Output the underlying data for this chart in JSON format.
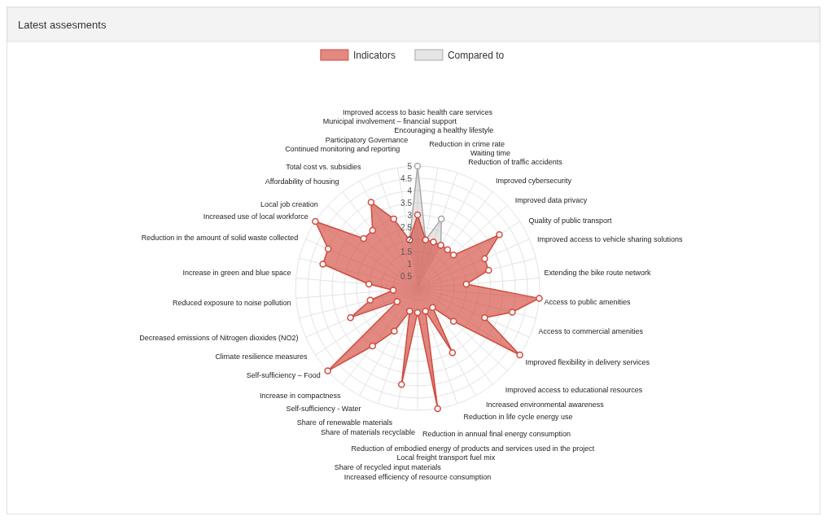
{
  "chart_data": {
    "type": "radar",
    "title": "Latest assesments",
    "categories": [
      "Improved access to basic health care services",
      "Encouraging a healthy lifestyle",
      "Reduction in crime rate",
      "Waiting time",
      "Reduction of traffic accidents",
      "Improved cybersecurity",
      "Improved data privacy",
      "Quality of public transport",
      "Improved access to vehicle sharing solutions",
      "Extending the bike route network",
      "Access to public amenities",
      "Access to commercial amenities",
      "Improved flexibility in delivery services",
      "Improved access to educational resources",
      "Increased environmental awareness",
      "Reduction in life cycle energy use",
      "Reduction in annual final energy consumption",
      "Reduction of embodied energy of products and services used in the project",
      "Local freight transport fuel mix",
      "Increased efficiency of resource consumption",
      "Share of recycled input materials",
      "Share of materials recyclable",
      "Share of renewable materials",
      "Self-sufficiency - Water",
      "Increase in compactness",
      "Self-sufficiency – Food",
      "Climate resilience measures",
      "Decreased emissions of Nitrogen dioxides (NO2)",
      "Reduced exposure to noise pollution",
      "Increase in green and blue space",
      "Reduction in the amount of solid waste collected",
      "Increased use of local workforce",
      "Local job creation",
      "Affordability of housing",
      "Total cost vs. subsidies",
      "Continued monitoring and reporting",
      "Participatory Governance",
      "Municipal involvement – financial support"
    ],
    "series": [
      {
        "name": "Indicators",
        "color": "#d24a3e",
        "values": [
          3,
          2,
          2,
          2,
          2,
          2,
          4,
          3,
          3,
          2,
          5,
          4,
          3,
          5,
          2,
          1,
          3,
          1,
          5,
          1,
          4,
          1,
          2,
          3,
          5,
          1,
          3,
          2,
          1,
          2,
          4,
          4,
          5,
          3,
          3,
          4,
          3,
          2
        ]
      },
      {
        "name": "Compared to",
        "color": "#a8a8a8",
        "values": [
          5,
          2,
          3,
          2,
          null,
          null,
          null,
          null,
          null,
          null,
          null,
          null,
          null,
          null,
          null,
          null,
          null,
          null,
          null,
          null,
          null,
          null,
          null,
          null,
          null,
          null,
          null,
          null,
          null,
          null,
          null,
          null,
          null,
          null,
          null,
          null,
          null,
          2
        ]
      }
    ],
    "ylim": [
      0,
      5
    ],
    "yticks": [
      0.5,
      1,
      1.5,
      2,
      2.5,
      3,
      3.5,
      4,
      4.5,
      5
    ],
    "grid": true,
    "legend": "top",
    "marker": "circle"
  }
}
